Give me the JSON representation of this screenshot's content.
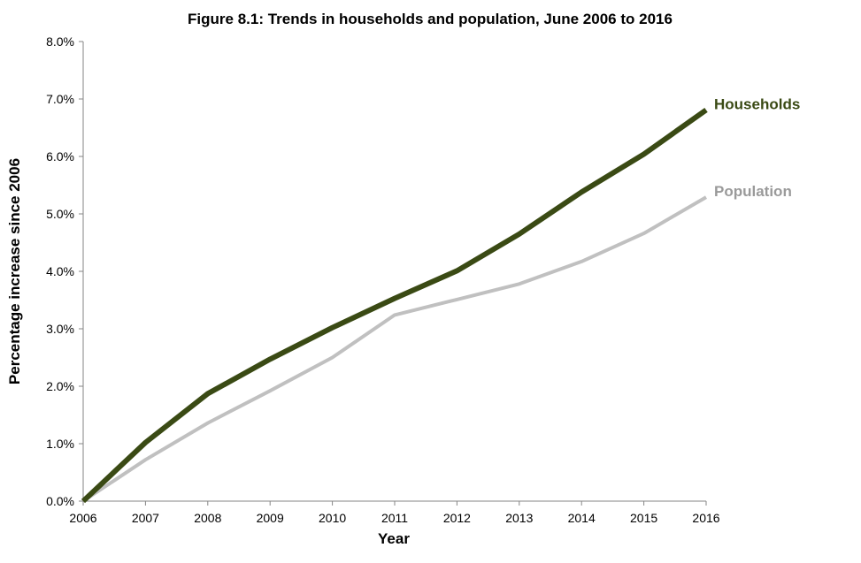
{
  "chart_data": {
    "type": "line",
    "title": "Figure 8.1: Trends in households and population, June 2006 to 2016",
    "xlabel": "Year",
    "ylabel": "Percentage increase since 2006",
    "x": [
      "2006",
      "2007",
      "2008",
      "2009",
      "2010",
      "2011",
      "2012",
      "2013",
      "2014",
      "2015",
      "2016"
    ],
    "ylim": [
      0,
      8
    ],
    "y_ticks": [
      "0.0%",
      "1.0%",
      "2.0%",
      "3.0%",
      "4.0%",
      "5.0%",
      "6.0%",
      "7.0%",
      "8.0%"
    ],
    "grid": false,
    "legend": "direct labels at line ends",
    "series": [
      {
        "name": "Households",
        "color": "#3a4a14",
        "values": [
          0.0,
          1.02,
          1.87,
          2.47,
          3.02,
          3.53,
          4.01,
          4.65,
          5.38,
          6.04,
          6.81
        ]
      },
      {
        "name": "Population",
        "color": "#c0c0c0",
        "values": [
          0.0,
          0.72,
          1.36,
          1.92,
          2.5,
          3.24,
          3.51,
          3.78,
          4.17,
          4.66,
          5.29
        ]
      }
    ]
  }
}
